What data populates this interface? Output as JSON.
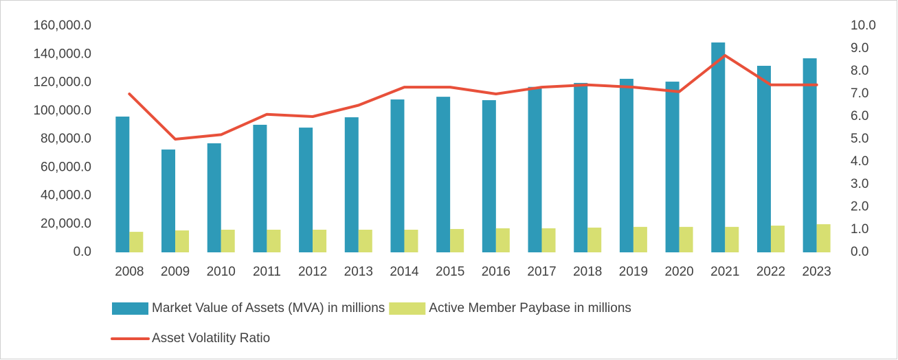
{
  "chart_data": {
    "type": "bar",
    "categories": [
      "2008",
      "2009",
      "2010",
      "2011",
      "2012",
      "2013",
      "2014",
      "2015",
      "2016",
      "2017",
      "2018",
      "2019",
      "2020",
      "2021",
      "2022",
      "2023"
    ],
    "series": [
      {
        "name": "Market Value of Assets (MVA) in millions",
        "type": "bar",
        "color": "#2e9ab8",
        "values": [
          96000,
          72700,
          77100,
          90200,
          88200,
          95500,
          108100,
          110000,
          107600,
          117000,
          119800,
          122700,
          120700,
          148400,
          131900,
          137200
        ]
      },
      {
        "name": "Active Member Paybase in millions",
        "type": "bar",
        "color": "#d7df71",
        "values": [
          14500,
          15500,
          16000,
          16000,
          16000,
          16000,
          16000,
          16500,
          17000,
          17000,
          17500,
          18000,
          18000,
          18000,
          18900,
          19900
        ]
      },
      {
        "name": "Asset Volatility Ratio",
        "type": "line",
        "axis": "y2",
        "color": "#e8503a",
        "values": [
          7.0,
          5.0,
          5.2,
          6.1,
          6.0,
          6.5,
          7.3,
          7.3,
          7.0,
          7.3,
          7.4,
          7.3,
          7.1,
          8.7,
          7.4,
          7.4
        ]
      }
    ],
    "ylim": [
      0,
      160000
    ],
    "yticks": [
      {
        "value": 0,
        "label": "0.0"
      },
      {
        "value": 20000,
        "label": "20,000.0"
      },
      {
        "value": 40000,
        "label": "40,000.0"
      },
      {
        "value": 60000,
        "label": "60,000.0"
      },
      {
        "value": 80000,
        "label": "80,000.0"
      },
      {
        "value": 100000,
        "label": "100,000.0"
      },
      {
        "value": 120000,
        "label": "120,000.0"
      },
      {
        "value": 140000,
        "label": "140,000.0"
      },
      {
        "value": 160000,
        "label": "160,000.0"
      }
    ],
    "y2lim": [
      0,
      10
    ],
    "y2ticks": [
      {
        "value": 0,
        "label": "0.0"
      },
      {
        "value": 1,
        "label": "1.0"
      },
      {
        "value": 2,
        "label": "2.0"
      },
      {
        "value": 3,
        "label": "3.0"
      },
      {
        "value": 4,
        "label": "4.0"
      },
      {
        "value": 5,
        "label": "5.0"
      },
      {
        "value": 6,
        "label": "6.0"
      },
      {
        "value": 7,
        "label": "7.0"
      },
      {
        "value": 8,
        "label": "8.0"
      },
      {
        "value": 9,
        "label": "9.0"
      },
      {
        "value": 10,
        "label": "10.0"
      }
    ],
    "grid": false,
    "legend": "bottom"
  }
}
